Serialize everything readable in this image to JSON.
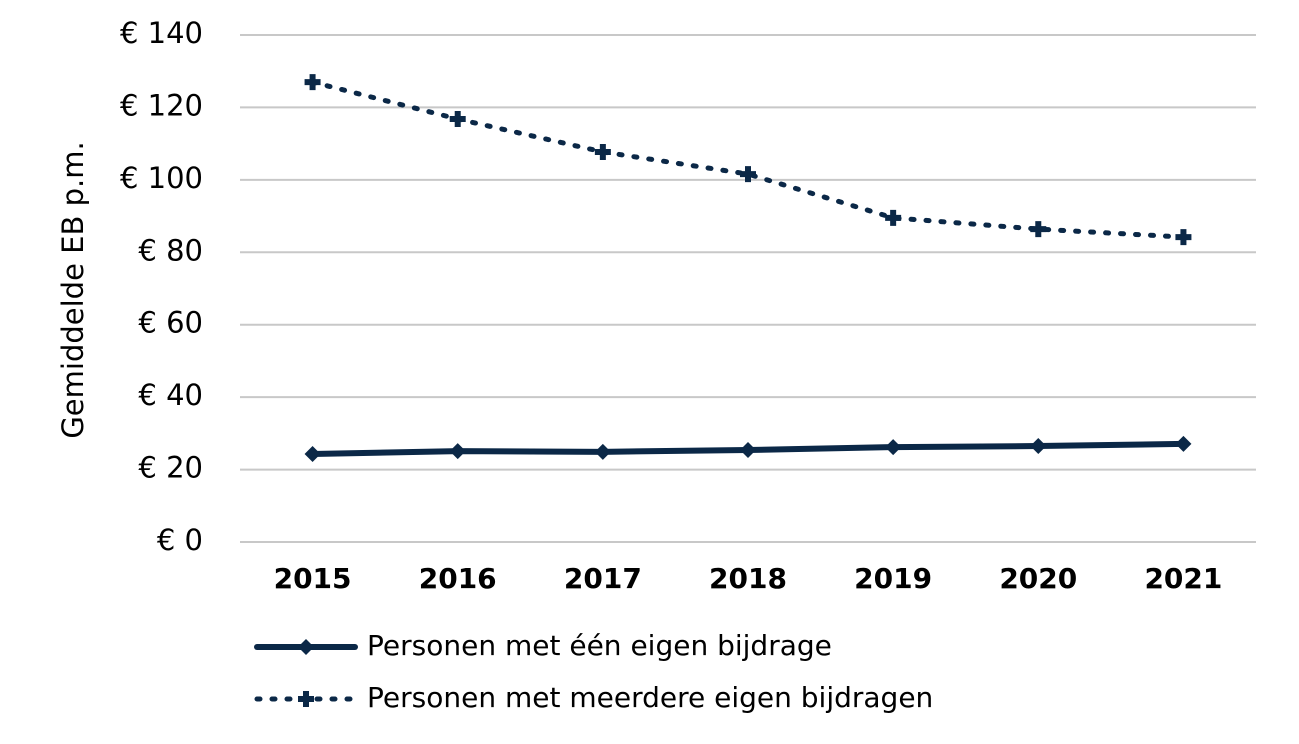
{
  "chart_data": {
    "type": "line",
    "y_label": "Gemiddelde EB p.m.",
    "categories": [
      "2015",
      "2016",
      "2017",
      "2018",
      "2019",
      "2020",
      "2021"
    ],
    "series": [
      {
        "name": "Personen met één eigen bijdrage",
        "color": "#0b2847",
        "line_style": "solid",
        "marker": "diamond",
        "values": [
          24.3,
          25.1,
          24.9,
          25.4,
          26.2,
          26.5,
          27.1
        ]
      },
      {
        "name": "Personen met meerdere eigen bijdragen",
        "color": "#0b2847",
        "line_style": "dotted",
        "marker": "plus",
        "values": [
          127,
          116.8,
          107.7,
          101.6,
          89.5,
          86.4,
          84.2
        ]
      }
    ],
    "ylim": [
      0,
      140
    ],
    "yticks": [
      {
        "value": 0,
        "label": "€ 0"
      },
      {
        "value": 20,
        "label": "€ 20"
      },
      {
        "value": 40,
        "label": "€ 40"
      },
      {
        "value": 60,
        "label": "€ 60"
      },
      {
        "value": 80,
        "label": "€ 80"
      },
      {
        "value": 100,
        "label": "€ 100"
      },
      {
        "value": 120,
        "label": "€ 120"
      },
      {
        "value": 140,
        "label": "€ 140"
      }
    ],
    "grid": true
  }
}
